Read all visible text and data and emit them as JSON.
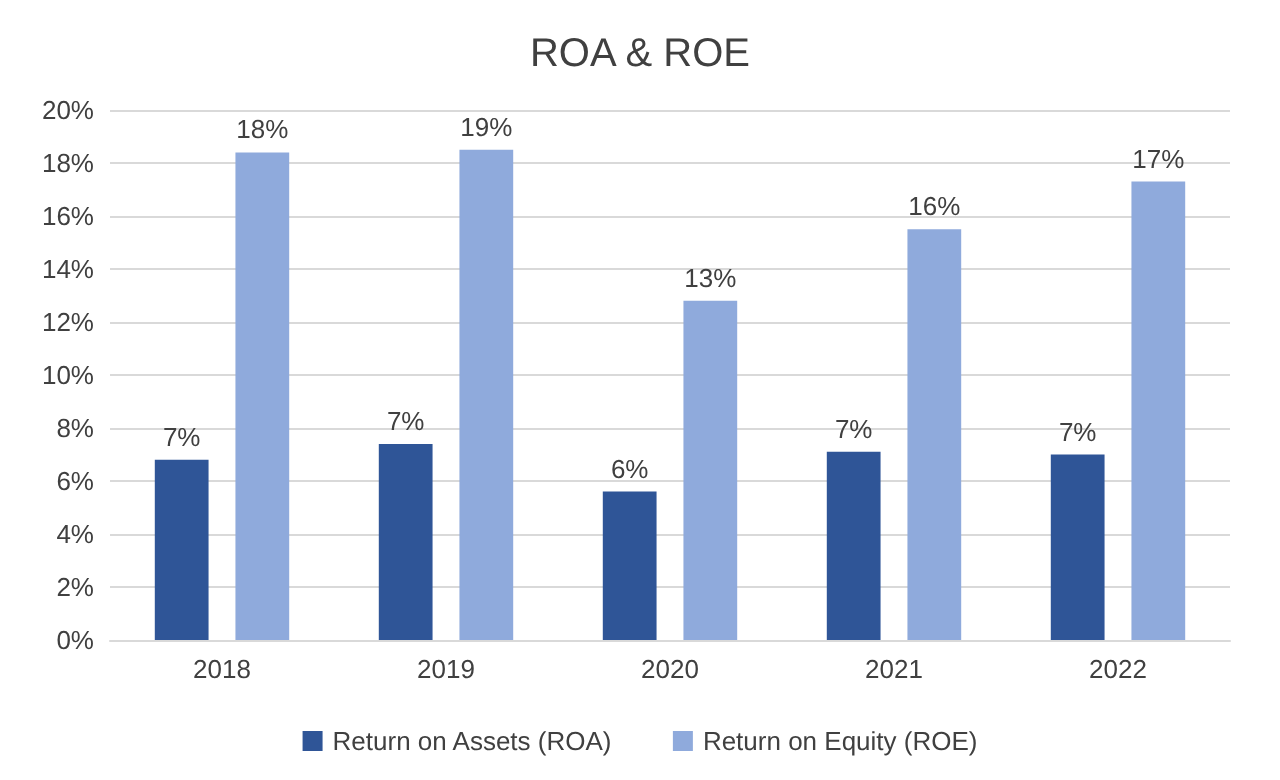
{
  "chart_data": {
    "type": "bar",
    "title": "ROA & ROE",
    "categories": [
      "2018",
      "2019",
      "2020",
      "2021",
      "2022"
    ],
    "series": [
      {
        "name": "Return on Assets (ROA)",
        "color": "#2f5597",
        "values": [
          6.8,
          7.4,
          5.6,
          7.1,
          7.0
        ],
        "value_labels": [
          "7%",
          "7%",
          "6%",
          "7%",
          "7%"
        ]
      },
      {
        "name": "Return on Equity (ROE)",
        "color": "#8faadc",
        "values": [
          18.4,
          18.5,
          12.8,
          15.5,
          17.3
        ],
        "value_labels": [
          "18%",
          "19%",
          "13%",
          "16%",
          "17%"
        ]
      }
    ],
    "ylim": [
      0,
      20
    ],
    "yticks": [
      {
        "value": 0,
        "label": "0%"
      },
      {
        "value": 2,
        "label": "2%"
      },
      {
        "value": 4,
        "label": "4%"
      },
      {
        "value": 6,
        "label": "6%"
      },
      {
        "value": 8,
        "label": "8%"
      },
      {
        "value": 10,
        "label": "10%"
      },
      {
        "value": 12,
        "label": "12%"
      },
      {
        "value": 14,
        "label": "14%"
      },
      {
        "value": 16,
        "label": "16%"
      },
      {
        "value": 18,
        "label": "18%"
      },
      {
        "value": 20,
        "label": "20%"
      }
    ],
    "grid": "y",
    "legend": "bottom"
  }
}
